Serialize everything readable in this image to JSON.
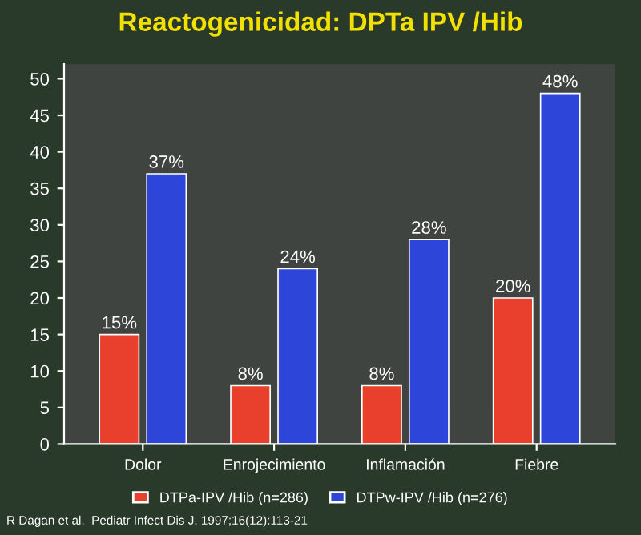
{
  "chart_data": {
    "type": "bar",
    "title": "Reactogenicidad: DPTa IPV /Hib",
    "categories": [
      "Dolor",
      "Enrojecimiento",
      "Inflamación",
      "Fiebre"
    ],
    "series": [
      {
        "name": "DTPa-IPV /Hib (n=286)",
        "color": "#e8402c",
        "values": [
          15,
          8,
          8,
          20
        ],
        "value_labels": [
          "15%",
          "8%",
          "8%",
          "20%"
        ]
      },
      {
        "name": "DTPw-IPV /Hib (n=276)",
        "color": "#2d45d8",
        "values": [
          37,
          24,
          28,
          48
        ],
        "value_labels": [
          "37%",
          "24%",
          "28%",
          "48%"
        ]
      }
    ],
    "ylim": [
      0,
      52
    ],
    "yticks": [
      0,
      5,
      10,
      15,
      20,
      25,
      30,
      35,
      40,
      45,
      50
    ],
    "grid": false,
    "legend": "bottom",
    "annotations": [
      "R Dagan et al.  Pediatr Infect Dis J. 1997;16(12):113-21"
    ]
  }
}
